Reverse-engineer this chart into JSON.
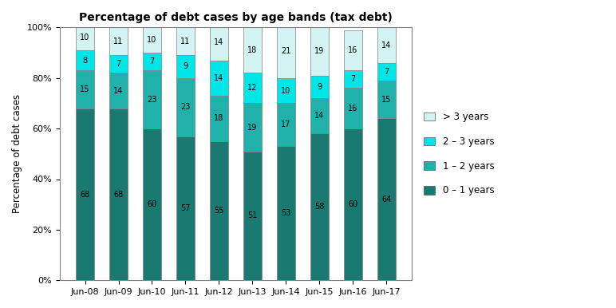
{
  "title": "Percentage of debt cases by age bands (tax debt)",
  "ylabel": "Percentage of debt cases",
  "categories": [
    "Jun-08",
    "Jun-09",
    "Jun-10",
    "Jun-11",
    "Jun-12",
    "Jun-13",
    "Jun-14",
    "Jun-15",
    "Jun-16",
    "Jun-17"
  ],
  "series": {
    "0-1 years": [
      68,
      68,
      60,
      57,
      55,
      51,
      53,
      58,
      60,
      64
    ],
    "1-2 years": [
      15,
      14,
      23,
      23,
      18,
      19,
      17,
      14,
      16,
      15
    ],
    "2-3 years": [
      8,
      7,
      7,
      9,
      14,
      12,
      10,
      9,
      7,
      7
    ],
    ">3 years": [
      10,
      11,
      10,
      11,
      14,
      18,
      21,
      19,
      16,
      14
    ]
  },
  "colors": {
    "0-1 years": "#1a7a72",
    "1-2 years": "#20b2aa",
    "2-3 years": "#00e5e5",
    ">3 years": "#d4f4f4"
  },
  "legend_labels": [
    "0 – 1 years",
    "1 – 2 years",
    "2 – 3 years",
    "> 3 years"
  ],
  "series_keys": [
    "0-1 years",
    "1-2 years",
    "2-3 years",
    ">3 years"
  ],
  "ylim": [
    0,
    100
  ],
  "yticks": [
    0,
    20,
    40,
    60,
    80,
    100
  ],
  "ytick_labels": [
    "0%",
    "20%",
    "40%",
    "60%",
    "80%",
    "100%"
  ],
  "background_color": "#ffffff",
  "bar_edge_color": "#808080",
  "bar_width": 0.55,
  "title_fontsize": 10,
  "axis_label_fontsize": 8.5,
  "tick_fontsize": 8,
  "legend_fontsize": 8.5,
  "value_fontsize": 7
}
